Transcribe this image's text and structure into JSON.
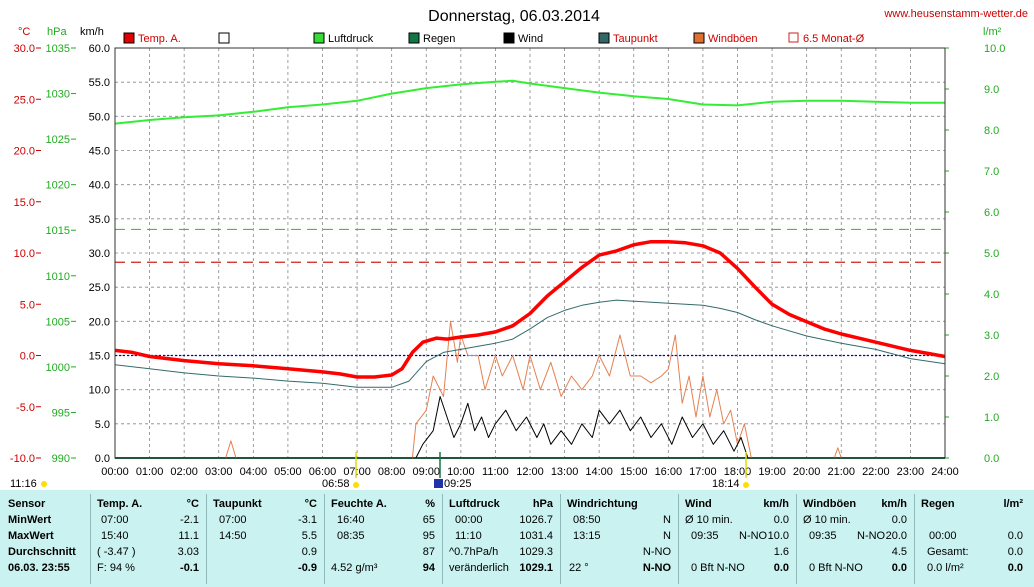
{
  "title": "Donnerstag, 06.03.2014",
  "site": "www.heusenstamm-wetter.de",
  "axis_units": {
    "temp": "°C",
    "pressure": "hPa",
    "wind": "km/h",
    "rain": "l/m²"
  },
  "legend": [
    {
      "label": "Temp. A.",
      "color": "#e00000"
    },
    {
      "label": "",
      "color": "#ffffff"
    },
    {
      "label": "Luftdruck",
      "color": "#33dd33"
    },
    {
      "label": "Regen",
      "color": "#117744"
    },
    {
      "label": "Wind",
      "color": "#000000"
    },
    {
      "label": "Taupunkt",
      "color": "#336666"
    },
    {
      "label": "Windböen",
      "color": "#e07030"
    },
    {
      "label": "6.5 Monat-Ø",
      "color": "#cc2222"
    }
  ],
  "colors": {
    "temp": "#ff0000",
    "dew": "#336b6b",
    "pressure": "#33ee33",
    "wind": "#000000",
    "gust": "#e58050",
    "rain": "#117744",
    "avg": "#cc2222",
    "grid": "#888888",
    "panel": "#c9f2f0"
  },
  "markers": {
    "sunrise": "06:58",
    "sunset": "18:14",
    "start": "11:16",
    "event": "09:25"
  },
  "chart_data": {
    "type": "line",
    "x_tick_labels": [
      "00:00",
      "01:00",
      "02:00",
      "03:00",
      "04:00",
      "05:00",
      "06:00",
      "07:00",
      "08:00",
      "09:00",
      "10:00",
      "11:00",
      "12:00",
      "13:00",
      "14:00",
      "15:00",
      "16:00",
      "17:00",
      "18:00",
      "19:00",
      "20:00",
      "21:00",
      "22:00",
      "23:00",
      "24:00"
    ],
    "xlim": [
      0,
      24
    ],
    "axes": {
      "temp": {
        "label": "°C",
        "ylim": [
          -10,
          30
        ],
        "ticks": [
          "-10.0",
          "-5.0",
          "0.0",
          "5.0",
          "10.0",
          "15.0",
          "20.0",
          "25.0",
          "30.0"
        ]
      },
      "pressure": {
        "label": "hPa",
        "ylim": [
          990,
          1035
        ],
        "ticks": [
          "990",
          "995",
          "1000",
          "1005",
          "1010",
          "1015",
          "1020",
          "1025",
          "1030",
          "1035"
        ]
      },
      "wind": {
        "label": "km/h",
        "ylim": [
          0,
          60
        ],
        "ticks": [
          "0.0",
          "5.0",
          "10.0",
          "15.0",
          "20.0",
          "25.0",
          "30.0",
          "35.0",
          "40.0",
          "45.0",
          "50.0",
          "55.0",
          "60.0"
        ]
      },
      "rain": {
        "label": "l/m²",
        "ylim": [
          0,
          10
        ],
        "ticks": [
          "0.0",
          "1.0",
          "2.0",
          "3.0",
          "4.0",
          "5.0",
          "6.0",
          "7.0",
          "8.0",
          "9.0",
          "10.0"
        ]
      }
    },
    "grid": true,
    "reference_lines": [
      {
        "axis": "temp",
        "value": 0,
        "color": "#0000cc",
        "style": "dotted"
      },
      {
        "axis": "temp",
        "value": 9.1,
        "color": "#cc2222",
        "style": "dashed"
      },
      {
        "axis": "temp",
        "value": 12.3,
        "color": "#33cc33",
        "style": "dashed"
      }
    ],
    "series": [
      {
        "name": "Temp. A.",
        "axis": "temp",
        "points": [
          [
            0,
            0.5
          ],
          [
            0.5,
            0.3
          ],
          [
            1,
            -0.1
          ],
          [
            2,
            -0.5
          ],
          [
            3,
            -0.8
          ],
          [
            4,
            -1.0
          ],
          [
            5,
            -1.3
          ],
          [
            6,
            -1.6
          ],
          [
            6.5,
            -1.8
          ],
          [
            7,
            -2.1
          ],
          [
            7.5,
            -2.1
          ],
          [
            8,
            -1.9
          ],
          [
            8.3,
            -1.3
          ],
          [
            8.6,
            0.3
          ],
          [
            8.9,
            1.3
          ],
          [
            9.3,
            1.7
          ],
          [
            9.6,
            1.6
          ],
          [
            10,
            1.8
          ],
          [
            10.5,
            2.0
          ],
          [
            11,
            2.3
          ],
          [
            11.5,
            2.9
          ],
          [
            12,
            4.1
          ],
          [
            12.5,
            5.8
          ],
          [
            13,
            7.2
          ],
          [
            13.5,
            8.6
          ],
          [
            14,
            9.8
          ],
          [
            14.5,
            10.2
          ],
          [
            15,
            10.8
          ],
          [
            15.5,
            11.1
          ],
          [
            16,
            11.1
          ],
          [
            16.5,
            11.0
          ],
          [
            17,
            10.7
          ],
          [
            17.5,
            10.0
          ],
          [
            18,
            8.5
          ],
          [
            18.5,
            6.7
          ],
          [
            19,
            5.0
          ],
          [
            19.5,
            4.0
          ],
          [
            20,
            3.3
          ],
          [
            20.5,
            2.6
          ],
          [
            21,
            2.1
          ],
          [
            21.5,
            1.7
          ],
          [
            22,
            1.3
          ],
          [
            22.5,
            0.9
          ],
          [
            23,
            0.5
          ],
          [
            23.5,
            0.2
          ],
          [
            24,
            -0.1
          ]
        ]
      },
      {
        "name": "Taupunkt",
        "axis": "temp",
        "points": [
          [
            0,
            -0.9
          ],
          [
            1,
            -1.3
          ],
          [
            2,
            -1.7
          ],
          [
            3,
            -2.0
          ],
          [
            4,
            -2.2
          ],
          [
            5,
            -2.5
          ],
          [
            6,
            -2.7
          ],
          [
            7,
            -3.1
          ],
          [
            8,
            -3.1
          ],
          [
            8.5,
            -2.5
          ],
          [
            9,
            -0.6
          ],
          [
            9.5,
            0.3
          ],
          [
            10,
            0.6
          ],
          [
            10.5,
            0.9
          ],
          [
            11,
            1.2
          ],
          [
            11.5,
            1.6
          ],
          [
            12,
            2.6
          ],
          [
            12.5,
            3.7
          ],
          [
            13,
            4.4
          ],
          [
            13.5,
            4.9
          ],
          [
            14,
            5.2
          ],
          [
            14.5,
            5.4
          ],
          [
            15,
            5.3
          ],
          [
            16,
            5.1
          ],
          [
            17,
            4.9
          ],
          [
            17.5,
            4.6
          ],
          [
            18,
            4.2
          ],
          [
            18.5,
            3.5
          ],
          [
            19,
            2.9
          ],
          [
            20,
            1.9
          ],
          [
            21,
            1.2
          ],
          [
            22,
            0.6
          ],
          [
            23,
            -0.3
          ],
          [
            24,
            -0.8
          ]
        ]
      },
      {
        "name": "Luftdruck",
        "axis": "pressure",
        "points": [
          [
            0,
            1026.7
          ],
          [
            1,
            1027.1
          ],
          [
            2,
            1027.4
          ],
          [
            3,
            1027.6
          ],
          [
            4,
            1028.0
          ],
          [
            5,
            1028.5
          ],
          [
            6,
            1028.8
          ],
          [
            7,
            1029.2
          ],
          [
            8,
            1030.0
          ],
          [
            9,
            1030.6
          ],
          [
            10,
            1031.0
          ],
          [
            11,
            1031.3
          ],
          [
            11.5,
            1031.4
          ],
          [
            12,
            1031.1
          ],
          [
            13,
            1030.6
          ],
          [
            14,
            1030.1
          ],
          [
            15,
            1029.7
          ],
          [
            16,
            1029.4
          ],
          [
            17,
            1028.8
          ],
          [
            18,
            1028.7
          ],
          [
            19,
            1029.1
          ],
          [
            20,
            1029.2
          ],
          [
            21,
            1029.2
          ],
          [
            22,
            1029.1
          ],
          [
            23,
            1029.0
          ],
          [
            24,
            1029.0
          ]
        ]
      },
      {
        "name": "Wind",
        "axis": "wind",
        "points": [
          [
            0,
            0
          ],
          [
            8.7,
            0
          ],
          [
            8.9,
            2
          ],
          [
            9.2,
            4
          ],
          [
            9.4,
            9
          ],
          [
            9.6,
            6
          ],
          [
            9.8,
            3
          ],
          [
            10,
            5
          ],
          [
            10.2,
            8
          ],
          [
            10.4,
            4
          ],
          [
            10.6,
            6
          ],
          [
            10.8,
            3
          ],
          [
            11,
            5
          ],
          [
            11.3,
            7
          ],
          [
            11.6,
            4
          ],
          [
            11.9,
            6
          ],
          [
            12.2,
            3
          ],
          [
            12.4,
            5
          ],
          [
            12.6,
            2
          ],
          [
            12.9,
            4
          ],
          [
            13.2,
            2
          ],
          [
            13.5,
            5
          ],
          [
            13.8,
            3
          ],
          [
            14,
            7
          ],
          [
            14.3,
            5
          ],
          [
            14.6,
            7
          ],
          [
            14.9,
            4
          ],
          [
            15.2,
            6
          ],
          [
            15.5,
            3
          ],
          [
            15.8,
            5
          ],
          [
            16.1,
            2
          ],
          [
            16.4,
            6
          ],
          [
            16.7,
            3
          ],
          [
            17,
            5
          ],
          [
            17.3,
            2
          ],
          [
            17.6,
            4
          ],
          [
            17.9,
            1
          ],
          [
            18.1,
            3
          ],
          [
            18.3,
            0
          ],
          [
            24,
            0
          ]
        ]
      },
      {
        "name": "Windböen",
        "axis": "wind",
        "points": [
          [
            0,
            0
          ],
          [
            3.2,
            0
          ],
          [
            3.35,
            2.5
          ],
          [
            3.5,
            0
          ],
          [
            8.6,
            0
          ],
          [
            8.7,
            5
          ],
          [
            9,
            7
          ],
          [
            9.2,
            12
          ],
          [
            9.5,
            9
          ],
          [
            9.7,
            20
          ],
          [
            9.9,
            14
          ],
          [
            10,
            18
          ],
          [
            10.2,
            15
          ],
          [
            10.5,
            15
          ],
          [
            10.7,
            10
          ],
          [
            11,
            15
          ],
          [
            11.2,
            12
          ],
          [
            11.5,
            15
          ],
          [
            11.8,
            10
          ],
          [
            12,
            15
          ],
          [
            12.3,
            10
          ],
          [
            12.6,
            14
          ],
          [
            12.9,
            9
          ],
          [
            13.2,
            12
          ],
          [
            13.5,
            10
          ],
          [
            13.8,
            12
          ],
          [
            14,
            15
          ],
          [
            14.3,
            12
          ],
          [
            14.6,
            18
          ],
          [
            14.9,
            12
          ],
          [
            15.2,
            12
          ],
          [
            15.5,
            11
          ],
          [
            15.8,
            12
          ],
          [
            16,
            13
          ],
          [
            16.2,
            18
          ],
          [
            16.4,
            8
          ],
          [
            16.6,
            12
          ],
          [
            16.8,
            6
          ],
          [
            17,
            12
          ],
          [
            17.2,
            6
          ],
          [
            17.4,
            10
          ],
          [
            17.6,
            5
          ],
          [
            17.8,
            7
          ],
          [
            18,
            2
          ],
          [
            18.2,
            5
          ],
          [
            18.4,
            0
          ],
          [
            19,
            0
          ],
          [
            20.8,
            0
          ],
          [
            20.9,
            1.5
          ],
          [
            21,
            0
          ],
          [
            24,
            0
          ]
        ]
      },
      {
        "name": "Regen",
        "axis": "rain",
        "points": [
          [
            0,
            0
          ],
          [
            24,
            0
          ]
        ]
      }
    ]
  },
  "stats": {
    "sensor": {
      "header": "Sensor",
      "min": "MinWert",
      "max": "MaxWert",
      "avg": "Durchschnitt",
      "now": "06.03. 23:55"
    },
    "temp": {
      "header": "Temp. A.",
      "unit": "°C",
      "min_t": "07:00",
      "min_v": "-2.1",
      "max_t": "15:40",
      "max_v": "11.1",
      "avg_t": "( -3.47 )",
      "avg_v": "3.03",
      "now_t": "F: 94 %",
      "now_v": "-0.1"
    },
    "dew": {
      "header": "Taupunkt",
      "unit": "°C",
      "min_t": "07:00",
      "min_v": "-3.1",
      "max_t": "14:50",
      "max_v": "5.5",
      "avg_v": "0.9",
      "now_v": "-0.9"
    },
    "hum": {
      "header": "Feuchte A.",
      "unit": "%",
      "min_t": "16:40",
      "min_v": "65",
      "max_t": "08:35",
      "max_v": "95",
      "avg_v": "87",
      "now_t": "4.52 g/m³",
      "now_v": "94"
    },
    "press": {
      "header": "Luftdruck",
      "unit": "hPa",
      "min_t": "00:00",
      "min_v": "1026.7",
      "max_t": "11:10",
      "max_v": "1031.4",
      "avg_t": "^0.7hPa/h",
      "avg_v": "1029.3",
      "now_t": "veränderlich",
      "now_v": "1029.1"
    },
    "dir": {
      "header": "Windrichtung",
      "min_t": "08:50",
      "min_v": "N",
      "max_t": "13:15",
      "max_v": "N",
      "avg_v": "N-NO",
      "now_t": "22 °",
      "now_v": "N-NO"
    },
    "wind": {
      "header": "Wind",
      "unit": "km/h",
      "min_t": "Ø 10 min.",
      "min_v": "0.0",
      "max_t": "09:35",
      "max_d": "N-NO",
      "max_v": "10.0",
      "avg_v": "1.6",
      "now_t": "0 Bft N-NO",
      "now_v": "0.0"
    },
    "gust": {
      "header": "Windböen",
      "unit": "km/h",
      "min_t": "Ø 10 min.",
      "min_v": "0.0",
      "max_t": "09:35",
      "max_d": "N-NO",
      "max_v": "20.0",
      "avg_v": "4.5",
      "now_t": "0 Bft N-NO",
      "now_v": "0.0"
    },
    "rain": {
      "header": "Regen",
      "unit": "l/m²",
      "max_t": "00:00",
      "max_v": "0.0",
      "avg_t": "Gesamt:",
      "avg_v": "0.0",
      "now_t": "0.0 l/m²",
      "now_v": "0.0"
    }
  }
}
